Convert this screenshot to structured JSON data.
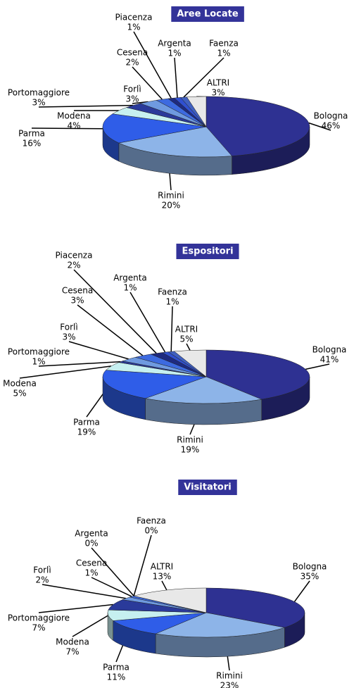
{
  "chart_data": [
    {
      "type": "pie",
      "title": "Aree Locate",
      "categories": [
        "Bologna",
        "Rimini",
        "Parma",
        "Modena",
        "Portomaggiore",
        "Forlì",
        "Cesena",
        "Piacenza",
        "Argenta",
        "Faenza",
        "ALTRI"
      ],
      "values": [
        46,
        20,
        16,
        4,
        3,
        3,
        2,
        1,
        1,
        1,
        3
      ],
      "value_labels": [
        "46%",
        "20%",
        "16%",
        "4%",
        "3%",
        "3%",
        "2%",
        "1%",
        "1%",
        "1%",
        "3%"
      ],
      "colors": [
        "#2e3192",
        "#8db4e8",
        "#2f5de8",
        "#c6f0f0",
        "#2a3a9a",
        "#6f9ae0",
        "#3d6ae0",
        "#1e2a80",
        "#3050d0",
        "#4060c0",
        "#e8e8e8"
      ]
    },
    {
      "type": "pie",
      "title": "Espositori",
      "categories": [
        "Bologna",
        "Rimini",
        "Parma",
        "Modena",
        "Portomaggiore",
        "Forlì",
        "Cesena",
        "Piacenza",
        "Argenta",
        "Faenza",
        "ALTRI"
      ],
      "values": [
        41,
        19,
        19,
        5,
        1,
        3,
        3,
        2,
        1,
        1,
        5
      ],
      "value_labels": [
        "41%",
        "19%",
        "19%",
        "5%",
        "1%",
        "3%",
        "3%",
        "2%",
        "1%",
        "1%",
        "5%"
      ],
      "colors": [
        "#2e3192",
        "#8db4e8",
        "#2f5de8",
        "#c6f0f0",
        "#2a3a9a",
        "#6f9ae0",
        "#3d6ae0",
        "#1e2a80",
        "#3050d0",
        "#4060c0",
        "#e8e8e8"
      ]
    },
    {
      "type": "pie",
      "title": "Visitatori",
      "categories": [
        "Bologna",
        "Rimini",
        "Parma",
        "Modena",
        "Portomaggiore",
        "Forlì",
        "Cesena",
        "Argenta",
        "Faenza",
        "ALTRI"
      ],
      "values": [
        35,
        23,
        11,
        7,
        7,
        2,
        1,
        0,
        0,
        13
      ],
      "value_labels": [
        "35%",
        "23%",
        "11%",
        "7%",
        "7%",
        "2%",
        "1%",
        "0%",
        "0%",
        "13%"
      ],
      "colors": [
        "#2e3192",
        "#8db4e8",
        "#2f5de8",
        "#c6f0f0",
        "#2a3a9a",
        "#6f9ae0",
        "#3d6ae0",
        "#3050d0",
        "#4060c0",
        "#e8e8e8"
      ]
    }
  ]
}
